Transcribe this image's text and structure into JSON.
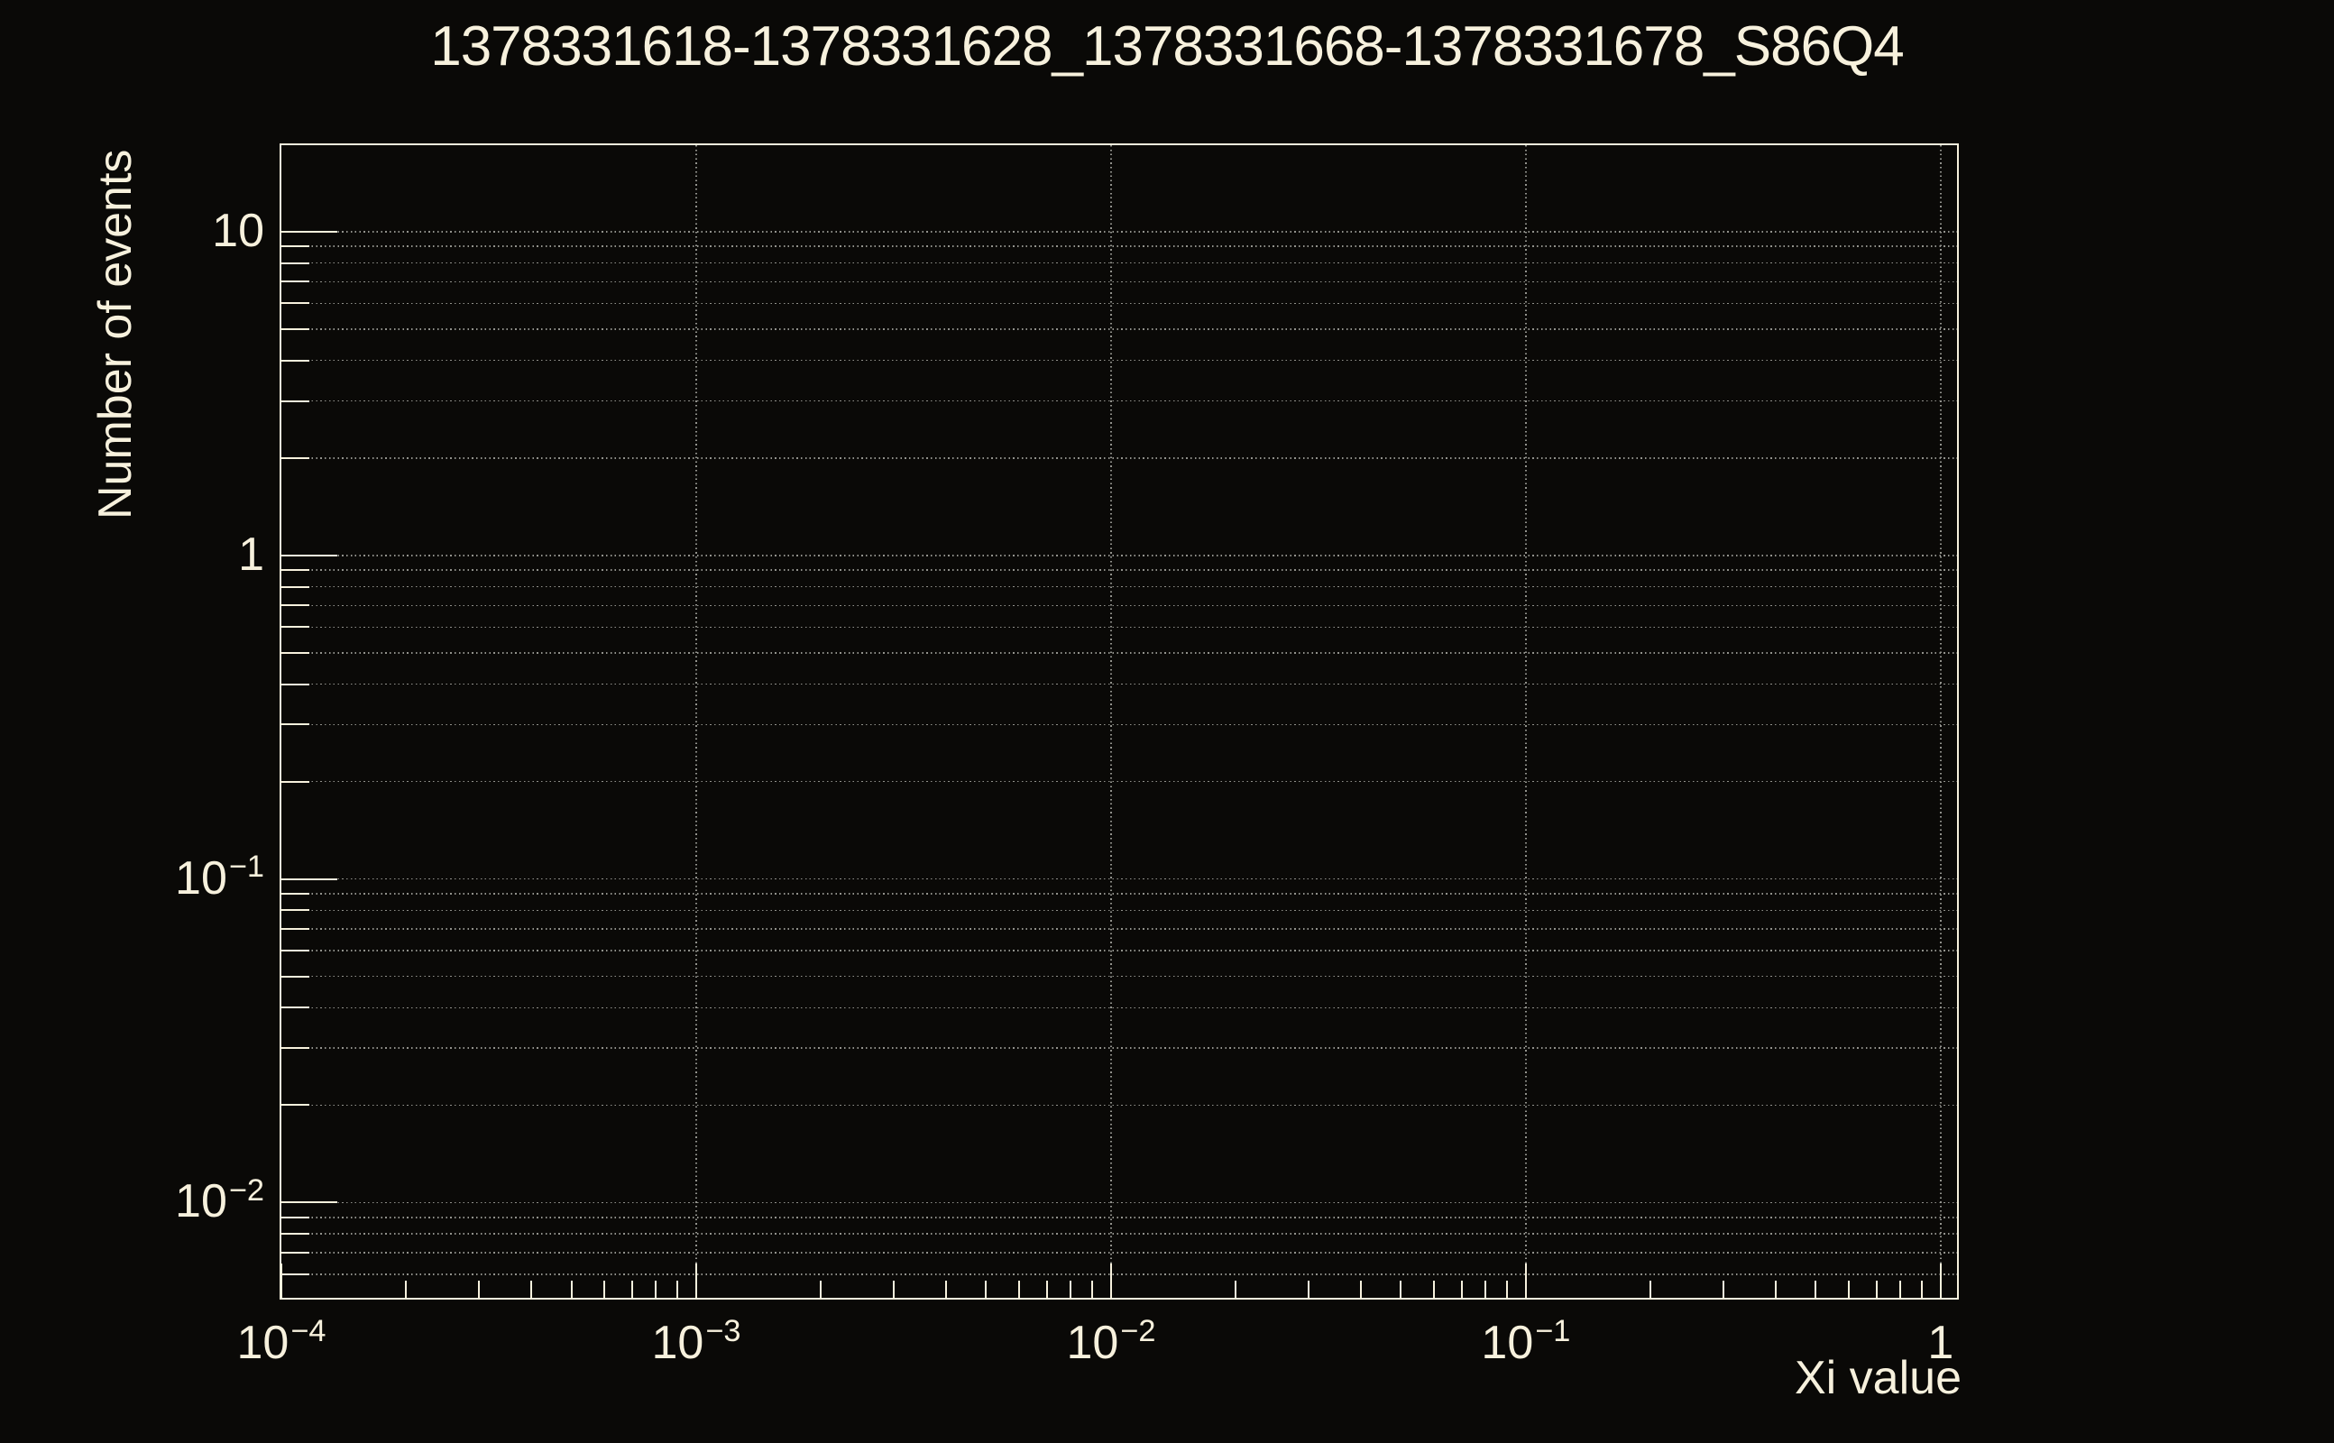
{
  "colors": {
    "fg": "#f7f1dd",
    "bg": "#0a0907",
    "grid": "#92928c"
  },
  "chart_data": {
    "type": "line",
    "title": "1378331618-1378331628_1378331668-1378331678_S86Q4",
    "xlabel": "Xi value",
    "ylabel": "Number of events",
    "xscale": "log",
    "yscale": "log",
    "xlim": [
      0.0001,
      1.095
    ],
    "ylim": [
      0.00508,
      18.5
    ],
    "grid": {
      "horizontal": "all-ticks",
      "vertical": "major-ticks",
      "style": "dotted"
    },
    "legend": "none",
    "series": [],
    "x_axis": {
      "min": 0.0001,
      "max": 1.095,
      "minor_factors": [
        2,
        3,
        4,
        5,
        6,
        7,
        8,
        9
      ],
      "major_ticks": [
        {
          "value": 0.0001,
          "base": "10",
          "exp": "−4"
        },
        {
          "value": 0.001,
          "base": "10",
          "exp": "−3"
        },
        {
          "value": 0.01,
          "base": "10",
          "exp": "−2"
        },
        {
          "value": 0.1,
          "base": "10",
          "exp": "−1"
        },
        {
          "value": 1,
          "base": "1",
          "exp": ""
        }
      ]
    },
    "y_axis": {
      "min": 0.00508,
      "max": 18.5,
      "minor_factors": [
        2,
        3,
        4,
        5,
        6,
        7,
        8,
        9
      ],
      "major_ticks": [
        {
          "value": 10,
          "base": "10",
          "exp": ""
        },
        {
          "value": 1,
          "base": "1",
          "exp": ""
        },
        {
          "value": 0.1,
          "base": "10",
          "exp": "−1"
        },
        {
          "value": 0.01,
          "base": "10",
          "exp": "−2"
        }
      ]
    }
  }
}
